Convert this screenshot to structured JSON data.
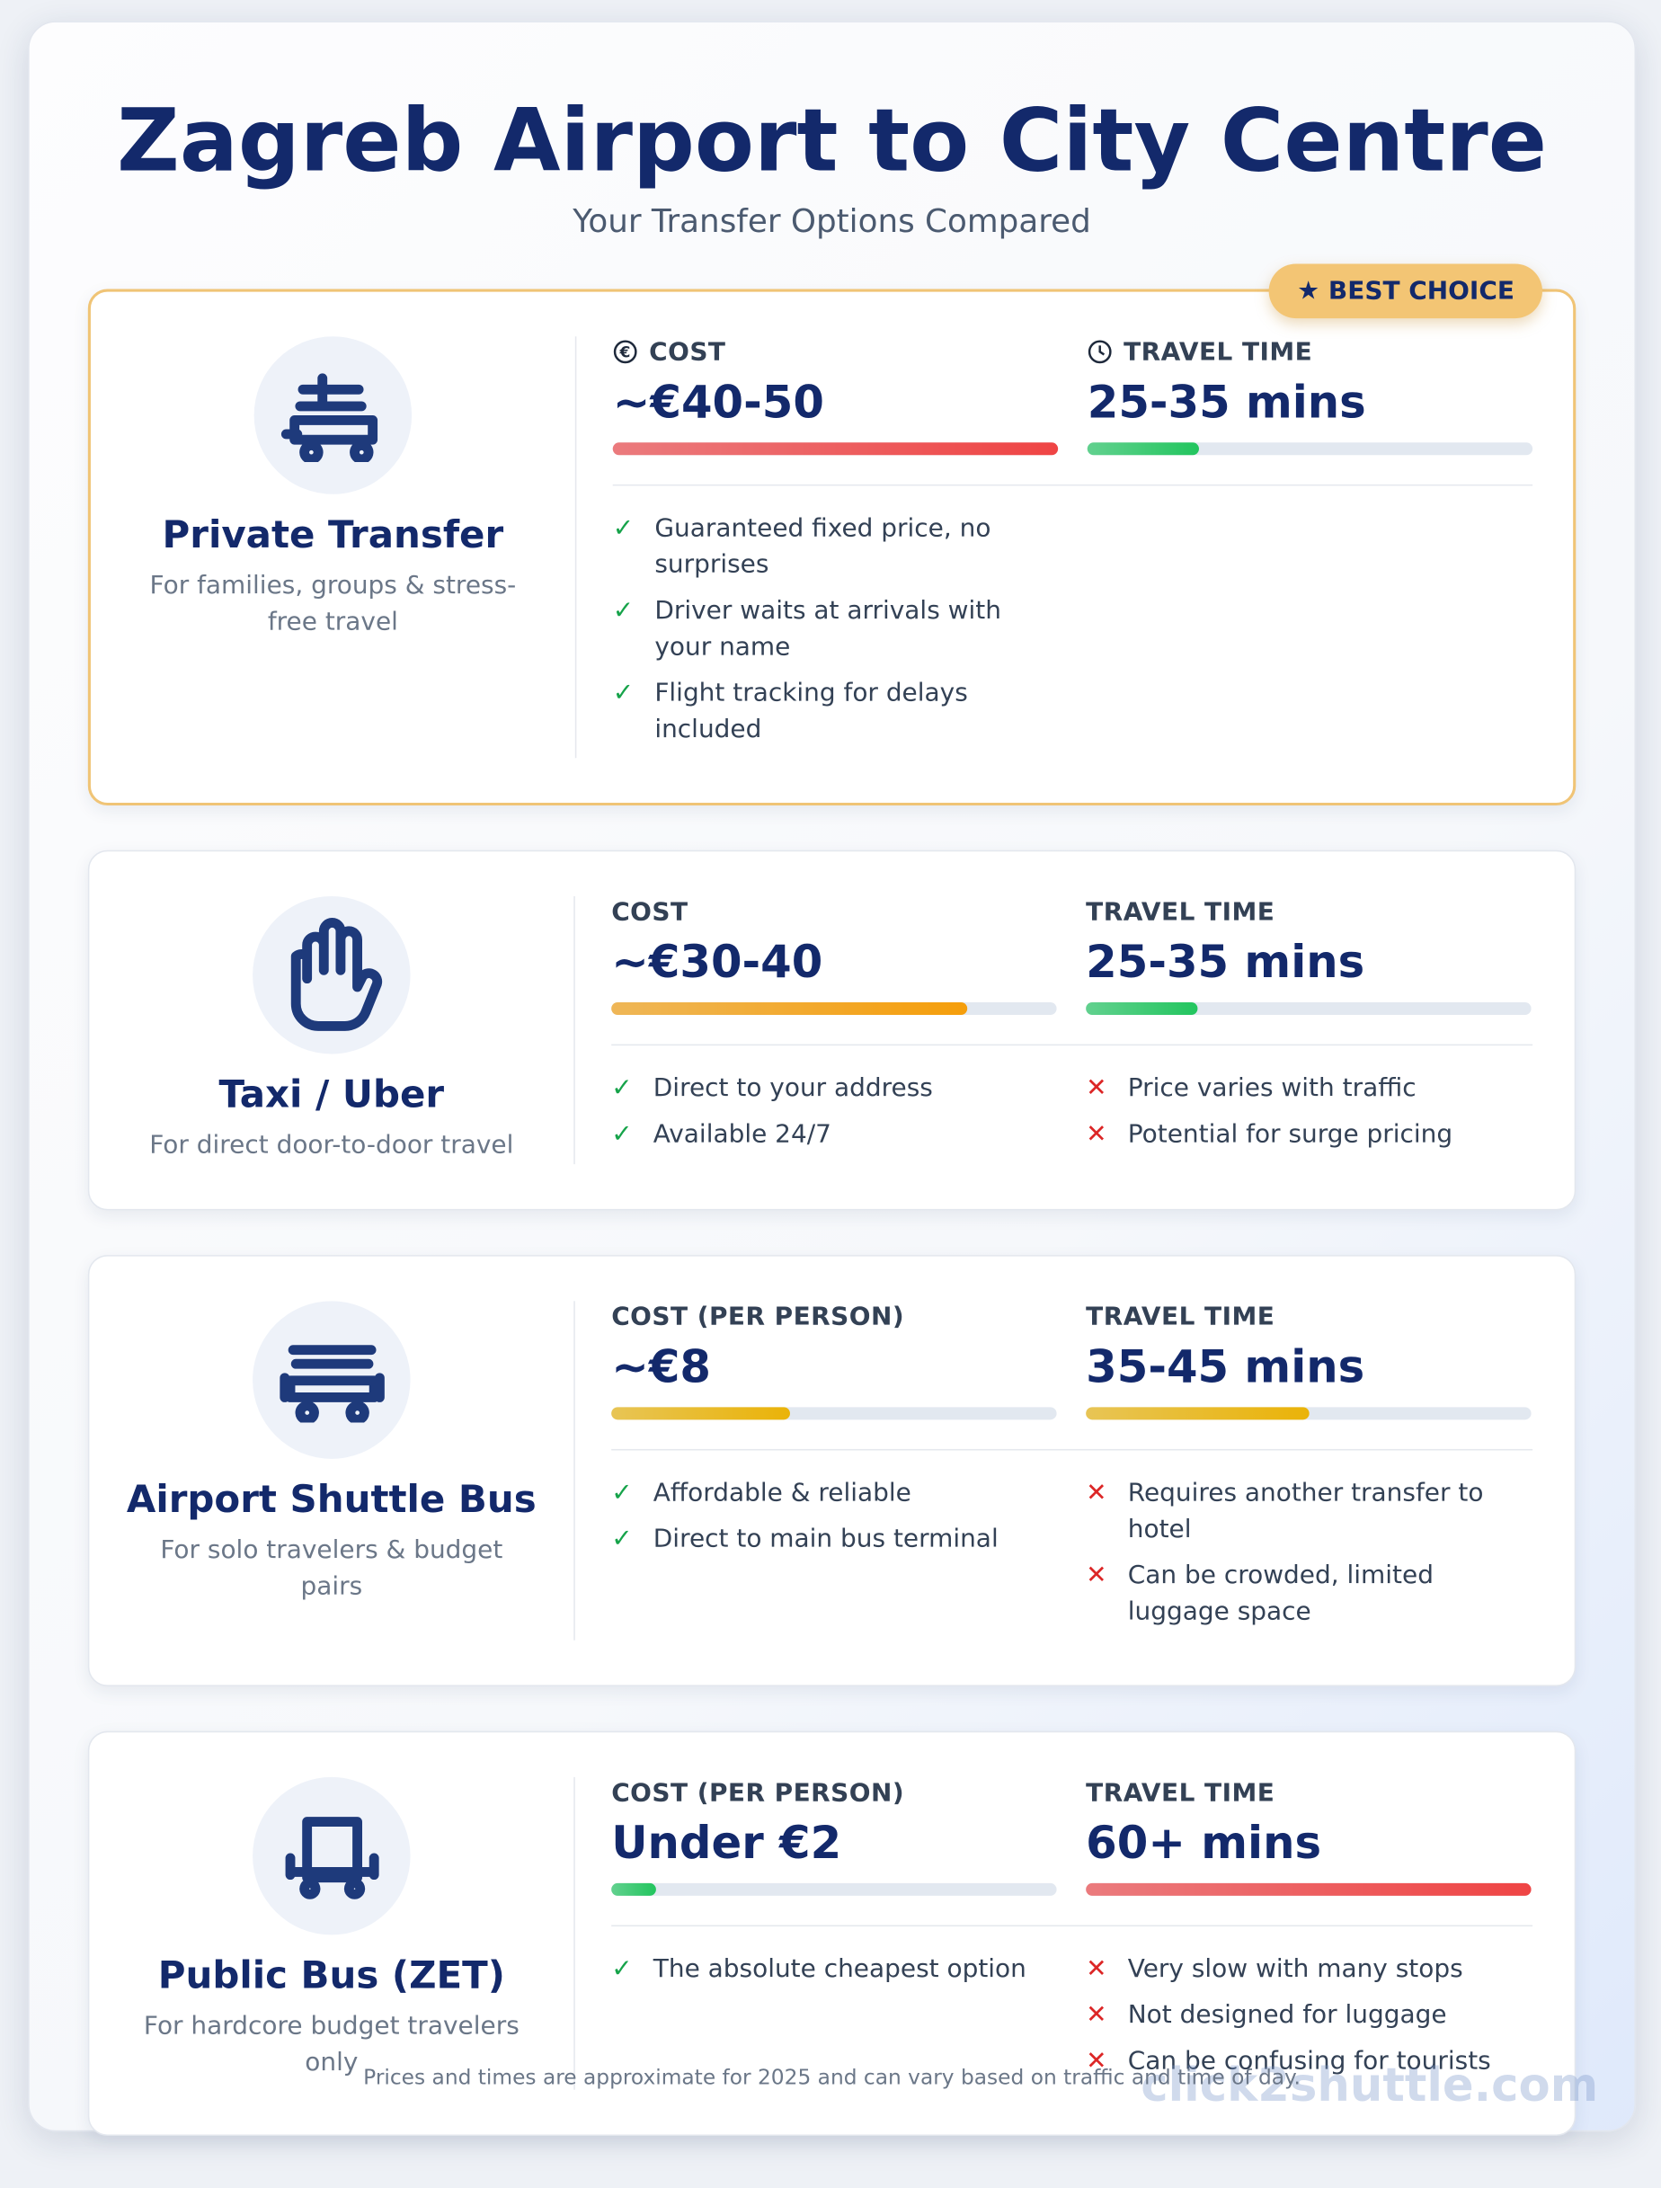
{
  "header": {
    "title": "Zagreb Airport to City Centre",
    "subtitle": "Your Transfer Options Compared"
  },
  "options": [
    {
      "badge": "BEST CHOICE",
      "name": "Private Transfer",
      "audience": "For families, groups & stress-free travel",
      "cost_label": "COST",
      "cost": "~€40-50",
      "time_label": "TRAVEL TIME",
      "time": "25-35 mins",
      "cost_bar": 100,
      "time_bar": 25,
      "cost_color": "#ef4444",
      "time_color": "#22c55e",
      "pros": [
        "Guaranteed fixed price, no surprises",
        "Driver waits at arrivals with your name",
        "Flight tracking for delays included"
      ],
      "cons": []
    },
    {
      "name": "Taxi / Uber",
      "audience": "For direct door-to-door travel",
      "cost_label": "COST",
      "cost": "~€30-40",
      "time_label": "TRAVEL TIME",
      "time": "25-35 mins",
      "cost_bar": 80,
      "time_bar": 25,
      "cost_color": "#f59e0b",
      "time_color": "#22c55e",
      "pros": [
        "Direct to your address",
        "Available 24/7"
      ],
      "cons": [
        "Price varies with traffic",
        "Potential for surge pricing"
      ]
    },
    {
      "name": "Airport Shuttle Bus",
      "audience": "For solo travelers & budget pairs",
      "cost_label": "COST (PER PERSON)",
      "cost": "~€8",
      "time_label": "TRAVEL TIME",
      "time": "35-45 mins",
      "cost_bar": 40,
      "time_bar": 50,
      "cost_color": "#eab308",
      "time_color": "#eab308",
      "pros": [
        "Affordable & reliable",
        "Direct to main bus terminal"
      ],
      "cons": [
        "Requires another transfer to hotel",
        "Can be crowded, limited luggage space"
      ]
    },
    {
      "name": "Public Bus (ZET)",
      "audience": "For hardcore budget travelers only",
      "cost_label": "COST (PER PERSON)",
      "cost": "Under €2",
      "time_label": "TRAVEL TIME",
      "time": "60+ mins",
      "cost_bar": 10,
      "time_bar": 100,
      "cost_color": "#22c55e",
      "time_color": "#ef4444",
      "pros": [
        "The absolute cheapest option"
      ],
      "cons": [
        "Very slow with many stops",
        "Not designed for luggage",
        "Can be confusing for tourists"
      ]
    }
  ],
  "footer": {
    "note": "Prices and times are approximate for 2025 and can vary based on traffic and time of day.",
    "watermark": "click2shuttle.com"
  }
}
